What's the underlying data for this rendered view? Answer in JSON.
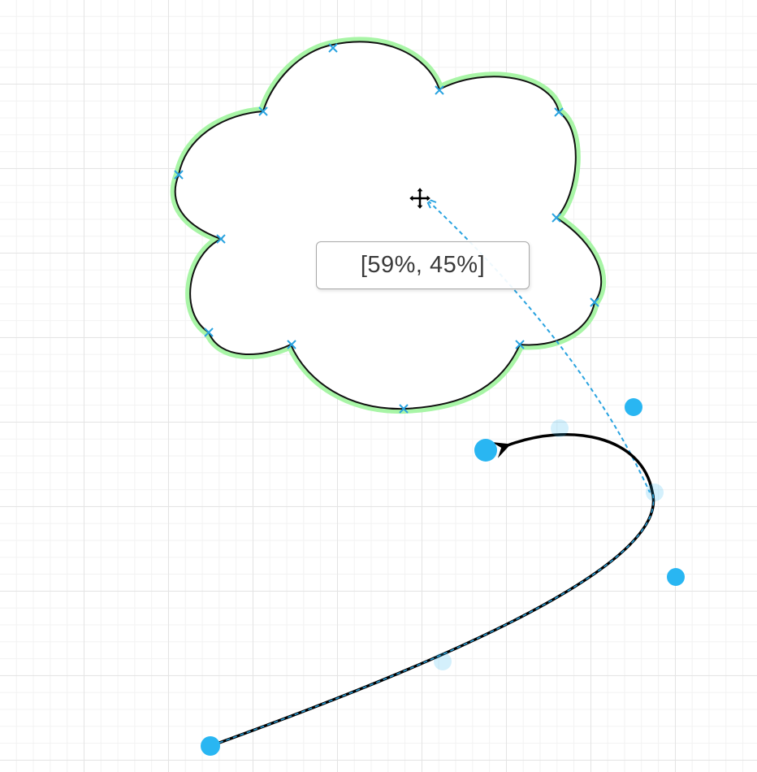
{
  "tooltip": {
    "text": "[59%, 45%]"
  },
  "icons": {
    "move_cursor": "move-cursor-icon",
    "constraint_point": "x-mark-icon",
    "handle": "filled-circle-handle",
    "virtual_bend": "translucent-circle-handle"
  },
  "colors": {
    "selection_glow": "#a8f5a6",
    "outline": "#111111",
    "handle": "#29b6f2",
    "guide": "#29a3e0",
    "connector": "#000000",
    "grid_major": "#e4e4e4",
    "grid_minor": "#f2f2f2"
  }
}
